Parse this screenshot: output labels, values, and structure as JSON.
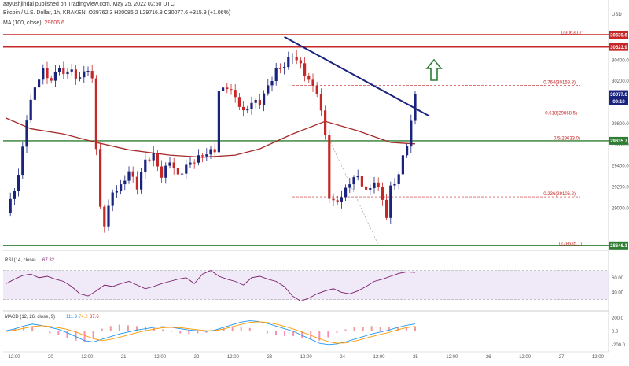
{
  "header": {
    "published": "aayushjindal published on TradingView.com, May 25, 2022 02:50 UTC",
    "symbol": "Bitcoin / U.S. Dollar, 1h, KRAKEN",
    "ohlc": "O29762.3 H30086.2 L29716.8 C30077.6 +315.9 (+1.06%)",
    "ma_label": "MA (100, close)",
    "ma_value": "29606.6"
  },
  "price_axis": {
    "currency": "USD",
    "ticks": [
      "30400.0",
      "30200.0",
      "29800.0",
      "29600.0",
      "29400.0",
      "29200.0",
      "29000.0"
    ],
    "tags": [
      {
        "text": "30639.6",
        "bg": "#c62828",
        "price": 30639.6
      },
      {
        "text": "30523.9",
        "bg": "#c62828",
        "price": 30523.9
      },
      {
        "text": "30077.6",
        "bg": "#1a237e",
        "price": 30077.6
      },
      {
        "text": "09:10",
        "bg": "#1a237e",
        "price": 30010
      },
      {
        "text": "29635.7",
        "bg": "#2e7d32",
        "price": 29635.7
      },
      {
        "text": "28646.1",
        "bg": "#2e7d32",
        "price": 28646.1
      }
    ]
  },
  "fib_labels": [
    "1(30630.7)",
    "0.764(30159.8)",
    "0.618(29868.5)",
    "0.5(29633.0)",
    "0.236(29106.2)",
    "0(28635.1)"
  ],
  "rsi": {
    "label": "RSI (14, close)",
    "value": "67.32",
    "ticks": [
      "60.00",
      "40.00"
    ]
  },
  "macd": {
    "label": "MACD (12, 26, close, 9)",
    "v1": "111.9",
    "v2": "74.2",
    "v3": "37.6",
    "ticks": [
      "200.0",
      "0.0",
      "-200.0"
    ]
  },
  "time_axis": [
    "12:00",
    "20",
    "12:00",
    "21",
    "12:00",
    "22",
    "12:00",
    "23",
    "12:00",
    "24",
    "12:00",
    "25",
    "12:00",
    "26",
    "12:00",
    "27",
    "12:00"
  ],
  "colors": {
    "up": "#1a237e",
    "down": "#c62828",
    "ma": "#a52a2a",
    "trend": "#1a237e",
    "support": "#2e7d32",
    "resistance": "#c62828",
    "arrow": "#2e7d32",
    "rsi": "#7b1f6b",
    "macd": "#2196f3",
    "signal": "#ff9800"
  },
  "chart_data": {
    "type": "candlestick",
    "interval": "1h",
    "y_range": [
      28600,
      30700
    ],
    "levels": {
      "resistance": [
        30639.6,
        30523.9
      ],
      "support": [
        29635.7,
        28646.1
      ]
    },
    "fibonacci": [
      {
        "ratio": 1,
        "price": 30630.7
      },
      {
        "ratio": 0.764,
        "price": 30159.8
      },
      {
        "ratio": 0.618,
        "price": 29868.5
      },
      {
        "ratio": 0.5,
        "price": 29633.0
      },
      {
        "ratio": 0.236,
        "price": 29106.2
      },
      {
        "ratio": 0,
        "price": 28635.1
      }
    ],
    "price_path": [
      {
        "i": 0,
        "p": 28950
      },
      {
        "i": 3,
        "p": 29300
      },
      {
        "i": 5,
        "p": 29850
      },
      {
        "i": 7,
        "p": 30150
      },
      {
        "i": 9,
        "p": 30300
      },
      {
        "i": 11,
        "p": 30200
      },
      {
        "i": 13,
        "p": 30350
      },
      {
        "i": 14,
        "p": 30250
      },
      {
        "i": 16,
        "p": 30330
      },
      {
        "i": 17,
        "p": 30200
      },
      {
        "i": 19,
        "p": 30300
      },
      {
        "i": 21,
        "p": 30250
      },
      {
        "i": 22,
        "p": 29550
      },
      {
        "i": 23,
        "p": 29000
      },
      {
        "i": 24,
        "p": 28850
      },
      {
        "i": 26,
        "p": 29150
      },
      {
        "i": 28,
        "p": 29200
      },
      {
        "i": 30,
        "p": 29350
      },
      {
        "i": 32,
        "p": 29200
      },
      {
        "i": 34,
        "p": 29450
      },
      {
        "i": 36,
        "p": 29500
      },
      {
        "i": 38,
        "p": 29300
      },
      {
        "i": 40,
        "p": 29450
      },
      {
        "i": 42,
        "p": 29300
      },
      {
        "i": 44,
        "p": 29400
      },
      {
        "i": 46,
        "p": 29450
      },
      {
        "i": 48,
        "p": 29500
      },
      {
        "i": 51,
        "p": 29550
      },
      {
        "i": 52,
        "p": 30100
      },
      {
        "i": 54,
        "p": 30150
      },
      {
        "i": 56,
        "p": 30050
      },
      {
        "i": 58,
        "p": 29900
      },
      {
        "i": 60,
        "p": 30000
      },
      {
        "i": 62,
        "p": 30000
      },
      {
        "i": 64,
        "p": 30150
      },
      {
        "i": 66,
        "p": 30300
      },
      {
        "i": 68,
        "p": 30350
      },
      {
        "i": 70,
        "p": 30450
      },
      {
        "i": 72,
        "p": 30350
      },
      {
        "i": 74,
        "p": 30200
      },
      {
        "i": 76,
        "p": 30100
      },
      {
        "i": 78,
        "p": 29700
      },
      {
        "i": 79,
        "p": 29100
      },
      {
        "i": 80,
        "p": 29050
      },
      {
        "i": 82,
        "p": 29100
      },
      {
        "i": 84,
        "p": 29250
      },
      {
        "i": 86,
        "p": 29300
      },
      {
        "i": 88,
        "p": 29150
      },
      {
        "i": 90,
        "p": 29250
      },
      {
        "i": 92,
        "p": 29100
      },
      {
        "i": 93,
        "p": 28900
      },
      {
        "i": 94,
        "p": 29200
      },
      {
        "i": 96,
        "p": 29300
      },
      {
        "i": 97,
        "p": 29500
      },
      {
        "i": 98,
        "p": 29600
      },
      {
        "i": 99,
        "p": 29800
      },
      {
        "i": 100,
        "p": 30077.6
      }
    ],
    "ma100_path": [
      {
        "i": 0,
        "p": 29850
      },
      {
        "i": 6,
        "p": 29750
      },
      {
        "i": 14,
        "p": 29700
      },
      {
        "i": 22,
        "p": 29620
      },
      {
        "i": 30,
        "p": 29550
      },
      {
        "i": 40,
        "p": 29500
      },
      {
        "i": 48,
        "p": 29480
      },
      {
        "i": 56,
        "p": 29500
      },
      {
        "i": 62,
        "p": 29560
      },
      {
        "i": 70,
        "p": 29700
      },
      {
        "i": 78,
        "p": 29820
      },
      {
        "i": 86,
        "p": 29730
      },
      {
        "i": 94,
        "p": 29620
      },
      {
        "i": 100,
        "p": 29606.6
      }
    ],
    "trend_line": [
      {
        "i": 68,
        "p": 30620
      },
      {
        "i": 100,
        "p": 29780
      }
    ],
    "rsi_path": [
      52,
      58,
      63,
      65,
      60,
      62,
      58,
      55,
      48,
      38,
      35,
      42,
      50,
      48,
      52,
      55,
      50,
      45,
      48,
      52,
      55,
      58,
      60,
      52,
      65,
      70,
      62,
      58,
      55,
      50,
      60,
      62,
      58,
      55,
      48,
      35,
      28,
      32,
      38,
      42,
      45,
      40,
      38,
      42,
      48,
      55,
      58,
      62,
      66,
      68,
      67.32
    ],
    "macd_line": [
      10,
      40,
      80,
      110,
      90,
      60,
      30,
      -20,
      -80,
      -140,
      -160,
      -120,
      -80,
      -40,
      -10,
      20,
      40,
      60,
      70,
      60,
      40,
      20,
      10,
      0,
      20,
      60,
      100,
      140,
      160,
      150,
      120,
      80,
      40,
      0,
      -60,
      -120,
      -180,
      -200,
      -190,
      -160,
      -120,
      -80,
      -40,
      -10,
      20,
      60,
      90,
      111.9
    ],
    "signal_line": [
      0,
      20,
      45,
      70,
      85,
      75,
      55,
      30,
      -10,
      -60,
      -110,
      -140,
      -120,
      -90,
      -55,
      -20,
      10,
      35,
      55,
      60,
      55,
      40,
      25,
      10,
      12,
      35,
      70,
      105,
      135,
      145,
      135,
      110,
      75,
      35,
      -10,
      -60,
      -110,
      -155,
      -180,
      -175,
      -150,
      -115,
      -80,
      -45,
      -15,
      25,
      55,
      74.2
    ]
  }
}
